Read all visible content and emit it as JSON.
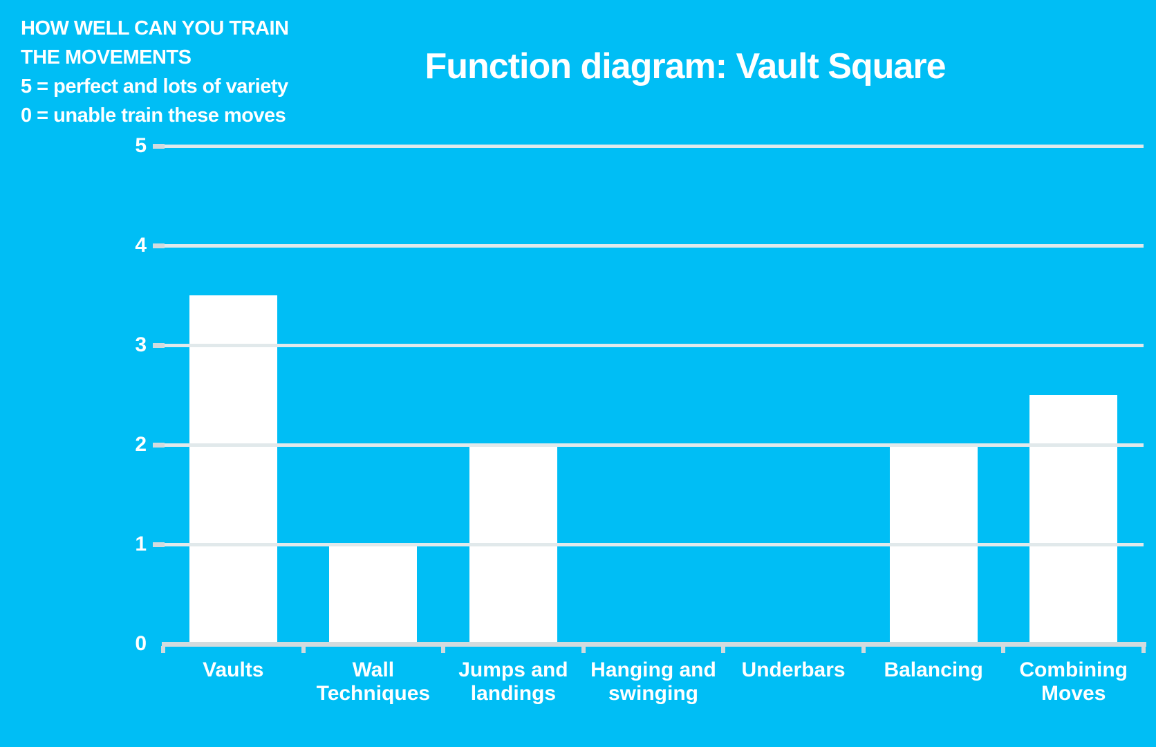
{
  "chart_data": {
    "type": "bar",
    "title": "Function diagram: Vault Square",
    "annotation_lines": [
      "HOW WELL CAN YOU TRAIN",
      "THE MOVEMENTS",
      "5 = perfect and lots of variety",
      "0 = unable train these moves"
    ],
    "categories": [
      "Vaults",
      "Wall Techniques",
      "Jumps and landings",
      "Hanging and swinging",
      "Underbars",
      "Balancing",
      "Combining Moves"
    ],
    "category_label_lines": [
      [
        "Vaults"
      ],
      [
        "Wall",
        "Techniques"
      ],
      [
        "Jumps and",
        "landings"
      ],
      [
        "Hanging and",
        "swinging"
      ],
      [
        "Underbars"
      ],
      [
        "Balancing"
      ],
      [
        "Combining",
        "Moves"
      ]
    ],
    "values": [
      3.5,
      1,
      2,
      0,
      0,
      2,
      2.5
    ],
    "xlabel": "",
    "ylabel": "",
    "ylim": [
      0,
      5
    ],
    "yticks": [
      0,
      1,
      2,
      3,
      4,
      5
    ],
    "grid": true,
    "legend": false,
    "colors": {
      "background": "#00BEF5",
      "bar": "#FFFFFF",
      "gridline": "#E1E9EB",
      "axis": "#D2DBDE",
      "text": "#FFFFFF"
    }
  }
}
